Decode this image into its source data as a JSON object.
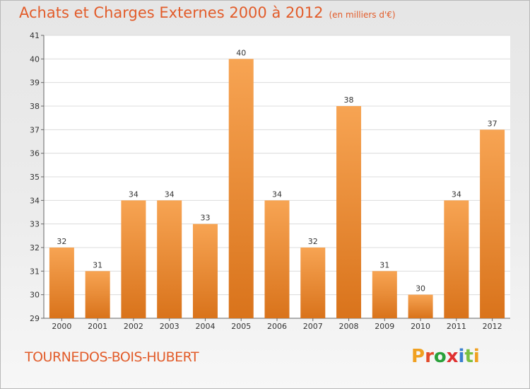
{
  "header": {
    "title": "Achats et Charges Externes 2000 à 2012",
    "unit": "(en milliers d'€)"
  },
  "footer": {
    "commune": "TOURNEDOS-BOIS-HUBERT",
    "logo_text": "Proxiti",
    "logo_colors": [
      "#f0a020",
      "#e24a2a",
      "#2aa03a",
      "#e03030",
      "#3a7fd0",
      "#7ac040",
      "#f0a020"
    ]
  },
  "colors": {
    "text_accent": "#e25c2a",
    "bar_top": "#f7a453",
    "bar_bottom": "#d9731b"
  },
  "chart_data": {
    "type": "bar",
    "title": "Achats et Charges Externes 2000 à 2012",
    "subtitle": "(en milliers d'€)",
    "categories": [
      "2000",
      "2001",
      "2002",
      "2003",
      "2004",
      "2005",
      "2006",
      "2007",
      "2008",
      "2009",
      "2010",
      "2011",
      "2012"
    ],
    "values": [
      32,
      31,
      34,
      34,
      33,
      40,
      34,
      32,
      38,
      31,
      30,
      34,
      37
    ],
    "ylim": [
      29,
      41
    ],
    "yticks": [
      29,
      30,
      31,
      32,
      33,
      34,
      35,
      36,
      37,
      38,
      39,
      40,
      41
    ],
    "grid": true,
    "legend": "none"
  }
}
